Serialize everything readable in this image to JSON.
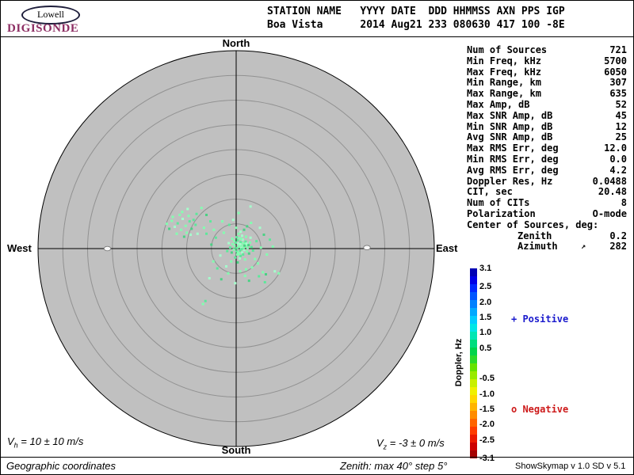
{
  "header": {
    "logo_top": "Lowell",
    "logo_bottom": "DIGISONDE",
    "line1": "STATION NAME   YYYY DATE  DDD HHMMSS AXN PPS IGP",
    "line2": "Boa Vista      2014 Aug21 233 080630 417 100 -8E"
  },
  "stats": {
    "rows": [
      {
        "label": "Num of Sources",
        "value": "721"
      },
      {
        "label": "Min Freq, kHz",
        "value": "5700"
      },
      {
        "label": "Max Freq, kHz",
        "value": "6050"
      },
      {
        "label": "Min Range, km",
        "value": "307"
      },
      {
        "label": "Max Range, km",
        "value": "635"
      },
      {
        "label": "Max Amp, dB",
        "value": "52"
      },
      {
        "label": "Max SNR Amp, dB",
        "value": "45"
      },
      {
        "label": "Min SNR Amp, dB",
        "value": "12"
      },
      {
        "label": "Avg SNR Amp, dB",
        "value": "25"
      },
      {
        "label": "Max RMS Err, deg",
        "value": "12.0"
      },
      {
        "label": "Min RMS Err, deg",
        "value": "0.0"
      },
      {
        "label": "Avg RMS Err, deg",
        "value": "4.2"
      },
      {
        "label": "Doppler Res, Hz",
        "value": "0.0488"
      },
      {
        "label": "CIT, sec",
        "value": "20.48"
      },
      {
        "label": "Num of CITs",
        "value": "8"
      },
      {
        "label": "Polarization",
        "value": "O-mode"
      },
      {
        "label": "Center of Sources, deg:",
        "value": ""
      },
      {
        "label": "Zenith",
        "value": "0.2",
        "indent": true
      },
      {
        "label": "Azimuth",
        "value": "282",
        "indent": true,
        "arrow": "↗"
      }
    ]
  },
  "legend": {
    "positive": "+ Positive",
    "negative": "o Negative"
  },
  "footer": {
    "vh_sym": "V",
    "vh_sub": "h",
    "vh_rest": " = 10 ± 10 m/s",
    "vz_sym": "V",
    "vz_sub": "z",
    "vz_rest": " = -3 ± 0 m/s",
    "coordinates": "Geographic coordinates",
    "zenith_note": "Zenith: max 40°  step 5°",
    "version": "ShowSkymap v 1.0  SD v 5.1"
  },
  "colors": {
    "logo": "#8d2e63",
    "positive_legend": "#1a1acd",
    "negative_legend": "#cd1a1a"
  },
  "chart_data": {
    "type": "scatter",
    "title": "Digisonde drift skymap, Boa Vista 2014 Aug21 233 080630",
    "projection": "polar",
    "zenith_max_deg": 40,
    "ring_step_deg": 5,
    "compass": {
      "top": "North",
      "bottom": "South",
      "left": "West",
      "right": "East"
    },
    "disk_color": "#c0c0c0",
    "ring_color": "#919191",
    "axis_color": "#000000",
    "point_palette": [
      "#82ffb0",
      "#5ce89a",
      "#a4ffcc",
      "#4ad184"
    ],
    "points_deg_xyc": [
      [
        0.2,
        0.1,
        0
      ],
      [
        0.8,
        -0.4,
        1
      ],
      [
        1.1,
        0.6,
        0
      ],
      [
        0.4,
        1.0,
        2
      ],
      [
        -0.3,
        0.5,
        0
      ],
      [
        0.9,
        1.3,
        1
      ],
      [
        1.5,
        0.2,
        0
      ],
      [
        0.6,
        -1.1,
        0
      ],
      [
        1.2,
        -0.8,
        2
      ],
      [
        0.1,
        -0.6,
        1
      ],
      [
        -0.5,
        -0.2,
        0
      ],
      [
        1.8,
        0.9,
        0
      ],
      [
        0.3,
        1.7,
        1
      ],
      [
        1.0,
        0.1,
        2
      ],
      [
        0.7,
        0.7,
        0
      ],
      [
        1.4,
        1.1,
        0
      ],
      [
        -0.1,
        1.2,
        1
      ],
      [
        0.5,
        0.4,
        0
      ],
      [
        1.6,
        -0.3,
        2
      ],
      [
        2.0,
        0.5,
        0
      ],
      [
        0.9,
        -1.5,
        1
      ],
      [
        0.2,
        -1.2,
        0
      ],
      [
        -0.7,
        0.9,
        0
      ],
      [
        1.3,
        1.8,
        2
      ],
      [
        0.6,
        2.1,
        0
      ],
      [
        1.9,
        1.4,
        1
      ],
      [
        2.3,
        0.1,
        0
      ],
      [
        0.0,
        0.0,
        3
      ],
      [
        0.8,
        0.9,
        2
      ],
      [
        1.1,
        -0.1,
        1
      ],
      [
        0.4,
        -0.8,
        0
      ],
      [
        1.7,
        0.6,
        3
      ],
      [
        2.1,
        1.0,
        2
      ],
      [
        -0.4,
        1.6,
        0
      ],
      [
        0.1,
        2.3,
        1
      ],
      [
        1.0,
        2.0,
        0
      ],
      [
        2.5,
        0.7,
        3
      ],
      [
        0.7,
        -2.0,
        2
      ],
      [
        1.4,
        -1.2,
        1
      ],
      [
        2.2,
        -0.6,
        0
      ],
      [
        -0.9,
        -0.8,
        3
      ],
      [
        -0.2,
        -1.8,
        1
      ],
      [
        0.5,
        3.0,
        0
      ],
      [
        1.2,
        2.6,
        2
      ],
      [
        2.8,
        1.2,
        0
      ],
      [
        3.1,
        0.3,
        1
      ],
      [
        2.6,
        -1.0,
        3
      ],
      [
        1.8,
        -2.2,
        0
      ],
      [
        0.9,
        3.4,
        2
      ],
      [
        -1.2,
        0.2,
        1
      ],
      [
        -0.8,
        2.0,
        0
      ],
      [
        0.3,
        -2.8,
        3
      ],
      [
        -1.5,
        1.1,
        2
      ],
      [
        2.0,
        2.4,
        0
      ],
      [
        3.4,
        -0.4,
        1
      ],
      [
        -1.0,
        -2.6,
        0
      ],
      [
        1.6,
        3.8,
        3
      ],
      [
        2.9,
        2.2,
        2
      ],
      [
        -1.8,
        -0.5,
        1
      ],
      [
        0.0,
        4.2,
        0
      ],
      [
        -2.5,
        3.2,
        0
      ],
      [
        4.1,
        1.5,
        1
      ],
      [
        3.8,
        -2.1,
        0
      ],
      [
        -3.2,
        -1.4,
        2
      ],
      [
        2.2,
        4.5,
        3
      ],
      [
        -1.4,
        4.8,
        1
      ],
      [
        5.0,
        0.2,
        0
      ],
      [
        4.4,
        -3.0,
        0
      ],
      [
        -2.0,
        -3.6,
        2
      ],
      [
        0.8,
        -4.6,
        0
      ],
      [
        -4.1,
        2.2,
        1
      ],
      [
        5.6,
        2.8,
        3
      ],
      [
        3.0,
        5.2,
        0
      ],
      [
        -0.6,
        5.8,
        2
      ],
      [
        6.2,
        -1.2,
        0
      ],
      [
        -3.8,
        -4.0,
        1
      ],
      [
        1.8,
        -5.5,
        0
      ],
      [
        -5.0,
        0.8,
        3
      ],
      [
        4.8,
        4.2,
        2
      ],
      [
        -2.8,
        5.5,
        0
      ],
      [
        6.8,
        1.8,
        1
      ],
      [
        -4.6,
        -2.6,
        0
      ],
      [
        2.6,
        -6.5,
        3
      ],
      [
        -0.2,
        -7.0,
        2
      ],
      [
        7.4,
        0.4,
        0
      ],
      [
        -6.0,
        3.0,
        1
      ],
      [
        5.4,
        -4.8,
        0
      ],
      [
        3.2,
        -3.8,
        0
      ],
      [
        4.6,
        -5.6,
        1
      ],
      [
        6.0,
        -5.2,
        3
      ],
      [
        7.8,
        -4.6,
        2
      ],
      [
        8.6,
        -5.0,
        0
      ],
      [
        2.0,
        -4.2,
        0
      ],
      [
        5.8,
        -6.8,
        1
      ],
      [
        -1.6,
        -5.0,
        0
      ],
      [
        -3.0,
        -6.2,
        3
      ],
      [
        -5.4,
        -6.0,
        2
      ],
      [
        -10.2,
        4.6,
        0
      ],
      [
        -9.4,
        5.5,
        1
      ],
      [
        -11.1,
        3.8,
        0
      ],
      [
        -10.8,
        6.0,
        2
      ],
      [
        -9.0,
        4.0,
        3
      ],
      [
        -11.8,
        5.1,
        1
      ],
      [
        -10.0,
        3.2,
        0
      ],
      [
        -9.6,
        6.6,
        0
      ],
      [
        -12.4,
        4.4,
        2
      ],
      [
        -11.4,
        6.8,
        0
      ],
      [
        -8.6,
        5.8,
        1
      ],
      [
        -10.5,
        2.4,
        3
      ],
      [
        -13.0,
        5.6,
        0
      ],
      [
        -9.2,
        2.8,
        2
      ],
      [
        -12.0,
        3.0,
        0
      ],
      [
        -8.2,
        4.8,
        1
      ],
      [
        -10.9,
        7.4,
        0
      ],
      [
        -13.5,
        4.0,
        3
      ],
      [
        -9.8,
        8.0,
        2
      ],
      [
        -12.8,
        6.4,
        0
      ],
      [
        -8.0,
        7.0,
        1
      ],
      [
        -14.0,
        5.0,
        0
      ],
      [
        -6.5,
        4.2,
        0
      ],
      [
        -5.2,
        5.5,
        1
      ],
      [
        -7.8,
        3.0,
        2
      ],
      [
        -6.0,
        6.8,
        3
      ],
      [
        -4.5,
        3.8,
        0
      ],
      [
        -6.7,
        -11.2,
        0
      ],
      [
        -6.2,
        -10.6,
        1
      ],
      [
        0.5,
        7.2,
        0
      ],
      [
        2.9,
        8.5,
        2
      ],
      [
        -7.0,
        8.2,
        0
      ]
    ],
    "open_markers_deg": [
      [
        -26.0,
        0.0
      ],
      [
        26.4,
        0.2
      ]
    ],
    "center_of_sources": {
      "zenith_deg": 0.2,
      "azimuth_deg": 282
    },
    "colorbar": {
      "label": "Doppler, Hz",
      "range": [
        -3.1,
        3.1
      ],
      "ticks": [
        "3.1",
        "2.5",
        "2.0",
        "1.5",
        "1.0",
        "0.5",
        "-0.5",
        "-1.0",
        "-1.5",
        "-2.0",
        "-2.5",
        "-3.1"
      ],
      "colors_top_to_bottom": [
        "#0000b4",
        "#0000e6",
        "#0028ff",
        "#0055ff",
        "#0080ff",
        "#00a8ff",
        "#00ccff",
        "#00e6e6",
        "#00e6b4",
        "#00dd7d",
        "#00d44b",
        "#2ada2a",
        "#66e200",
        "#99ea00",
        "#c8f000",
        "#f0f000",
        "#ffd700",
        "#ffb400",
        "#ff8c00",
        "#ff6400",
        "#ff3c00",
        "#eb1900",
        "#cd0000",
        "#a50000"
      ]
    }
  }
}
